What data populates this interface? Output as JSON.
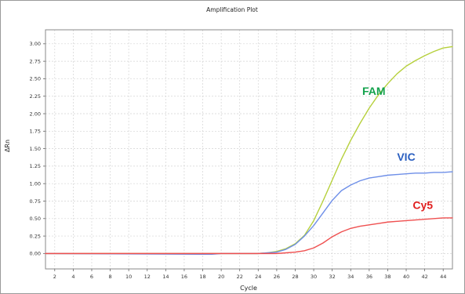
{
  "chart_data": {
    "type": "line",
    "title": "Amplification Plot",
    "xlabel": "Cycle",
    "ylabel": "ΔRn",
    "xlim": [
      1,
      45
    ],
    "ylim": [
      -0.22,
      3.2
    ],
    "grid": true,
    "x_ticks": [
      2,
      4,
      6,
      8,
      10,
      12,
      14,
      16,
      18,
      20,
      22,
      24,
      26,
      28,
      30,
      32,
      34,
      36,
      38,
      40,
      42,
      44
    ],
    "y_ticks": [
      "0.00",
      "0.25",
      "0.50",
      "0.75",
      "1.00",
      "1.25",
      "1.50",
      "1.75",
      "2.00",
      "2.25",
      "2.50",
      "2.75",
      "3.00"
    ],
    "x": [
      1,
      18,
      19,
      20,
      24,
      25,
      26,
      27,
      28,
      29,
      30,
      31,
      32,
      33,
      34,
      35,
      36,
      37,
      38,
      39,
      40,
      41,
      42,
      43,
      44,
      45
    ],
    "series": [
      {
        "name": "FAM",
        "color": "#b6d03c",
        "label_color": "#12a14b",
        "values": [
          0,
          0,
          0,
          0,
          0,
          0.01,
          0.03,
          0.07,
          0.14,
          0.26,
          0.47,
          0.75,
          1.05,
          1.35,
          1.62,
          1.86,
          2.08,
          2.27,
          2.43,
          2.57,
          2.68,
          2.76,
          2.83,
          2.89,
          2.94,
          2.96
        ]
      },
      {
        "name": "VIC",
        "color": "#6e8fe8",
        "label_color": "#2a5fc0",
        "values": [
          0,
          -0.01,
          -0.01,
          0,
          0,
          0.01,
          0.02,
          0.06,
          0.13,
          0.25,
          0.4,
          0.58,
          0.76,
          0.9,
          0.98,
          1.04,
          1.08,
          1.1,
          1.12,
          1.13,
          1.14,
          1.15,
          1.15,
          1.16,
          1.16,
          1.17
        ]
      },
      {
        "name": "Cy5",
        "color": "#ef5050",
        "label_color": "#e02020",
        "values": [
          0,
          0,
          0,
          0,
          0,
          0,
          0,
          0.01,
          0.02,
          0.04,
          0.08,
          0.15,
          0.24,
          0.31,
          0.36,
          0.39,
          0.41,
          0.43,
          0.45,
          0.46,
          0.47,
          0.48,
          0.49,
          0.5,
          0.51,
          0.51
        ]
      }
    ],
    "annotations": [
      {
        "text": "FAM",
        "series": "FAM",
        "x": 36.5,
        "y": 2.27
      },
      {
        "text": "VIC",
        "series": "VIC",
        "x": 40,
        "y": 1.33
      },
      {
        "text": "Cy5",
        "series": "Cy5",
        "x": 41.8,
        "y": 0.64
      }
    ]
  }
}
